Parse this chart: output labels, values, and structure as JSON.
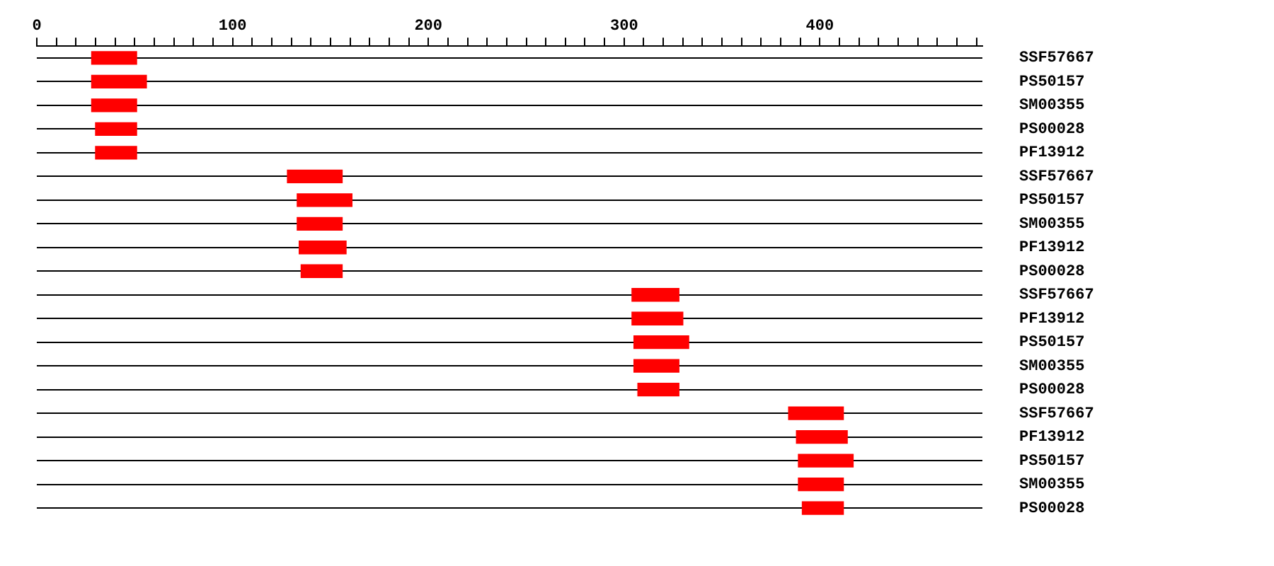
{
  "chart_data": {
    "type": "bar",
    "orientation": "horizontal",
    "categories": [
      "SSF57667",
      "PS50157",
      "SM00355",
      "PS00028",
      "PF13912",
      "SSF57667",
      "PS50157",
      "SM00355",
      "PF13912",
      "PS00028",
      "SSF57667",
      "PF13912",
      "PS50157",
      "SM00355",
      "PS00028",
      "SSF57667",
      "PF13912",
      "PS50157",
      "SM00355",
      "PS00028"
    ],
    "base": [
      28,
      28,
      28,
      30,
      30,
      128,
      133,
      133,
      134,
      135,
      304,
      304,
      305,
      305,
      307,
      384,
      388,
      389,
      389,
      391
    ],
    "values": [
      23,
      28,
      23,
      21,
      21,
      28,
      28,
      23,
      24,
      21,
      24,
      26,
      28,
      23,
      21,
      28,
      26,
      28,
      23,
      21
    ],
    "color": "#ff0000",
    "xlim": [
      0,
      483
    ],
    "xticks": [
      0,
      {
        "value": 10,
        "label": null
      },
      {
        "value": 20,
        "label": null
      },
      {
        "value": 30,
        "label": null
      },
      {
        "value": 40,
        "label": null
      },
      {
        "value": 50,
        "label": null
      },
      {
        "value": 60,
        "label": null
      },
      {
        "value": 70,
        "label": null
      },
      {
        "value": 80,
        "label": null
      },
      {
        "value": 90,
        "label": null
      },
      100,
      {
        "value": 110,
        "label": null
      },
      {
        "value": 120,
        "label": null
      },
      {
        "value": 130,
        "label": null
      },
      {
        "value": 140,
        "label": null
      },
      {
        "value": 150,
        "label": null
      },
      {
        "value": 160,
        "label": null
      },
      {
        "value": 170,
        "label": null
      },
      {
        "value": 180,
        "label": null
      },
      {
        "value": 190,
        "label": null
      },
      200,
      {
        "value": 210,
        "label": null
      },
      {
        "value": 220,
        "label": null
      },
      {
        "value": 230,
        "label": null
      },
      {
        "value": 240,
        "label": null
      },
      {
        "value": 250,
        "label": null
      },
      {
        "value": 260,
        "label": null
      },
      {
        "value": 270,
        "label": null
      },
      {
        "value": 280,
        "label": null
      },
      {
        "value": 290,
        "label": null
      },
      300,
      {
        "value": 310,
        "label": null
      },
      {
        "value": 320,
        "label": null
      },
      {
        "value": 330,
        "label": null
      },
      {
        "value": 340,
        "label": null
      },
      {
        "value": 350,
        "label": null
      },
      {
        "value": 360,
        "label": null
      },
      {
        "value": 370,
        "label": null
      },
      {
        "value": 380,
        "label": null
      },
      {
        "value": 390,
        "label": null
      },
      400,
      {
        "value": 410,
        "label": null
      },
      {
        "value": 420,
        "label": null
      },
      {
        "value": 430,
        "label": null
      },
      {
        "value": 440,
        "label": null
      },
      {
        "value": 450,
        "label": null
      },
      {
        "value": 460,
        "label": null
      },
      {
        "value": 470,
        "label": null
      },
      {
        "value": 480,
        "label": null
      }
    ],
    "grid": "y"
  }
}
